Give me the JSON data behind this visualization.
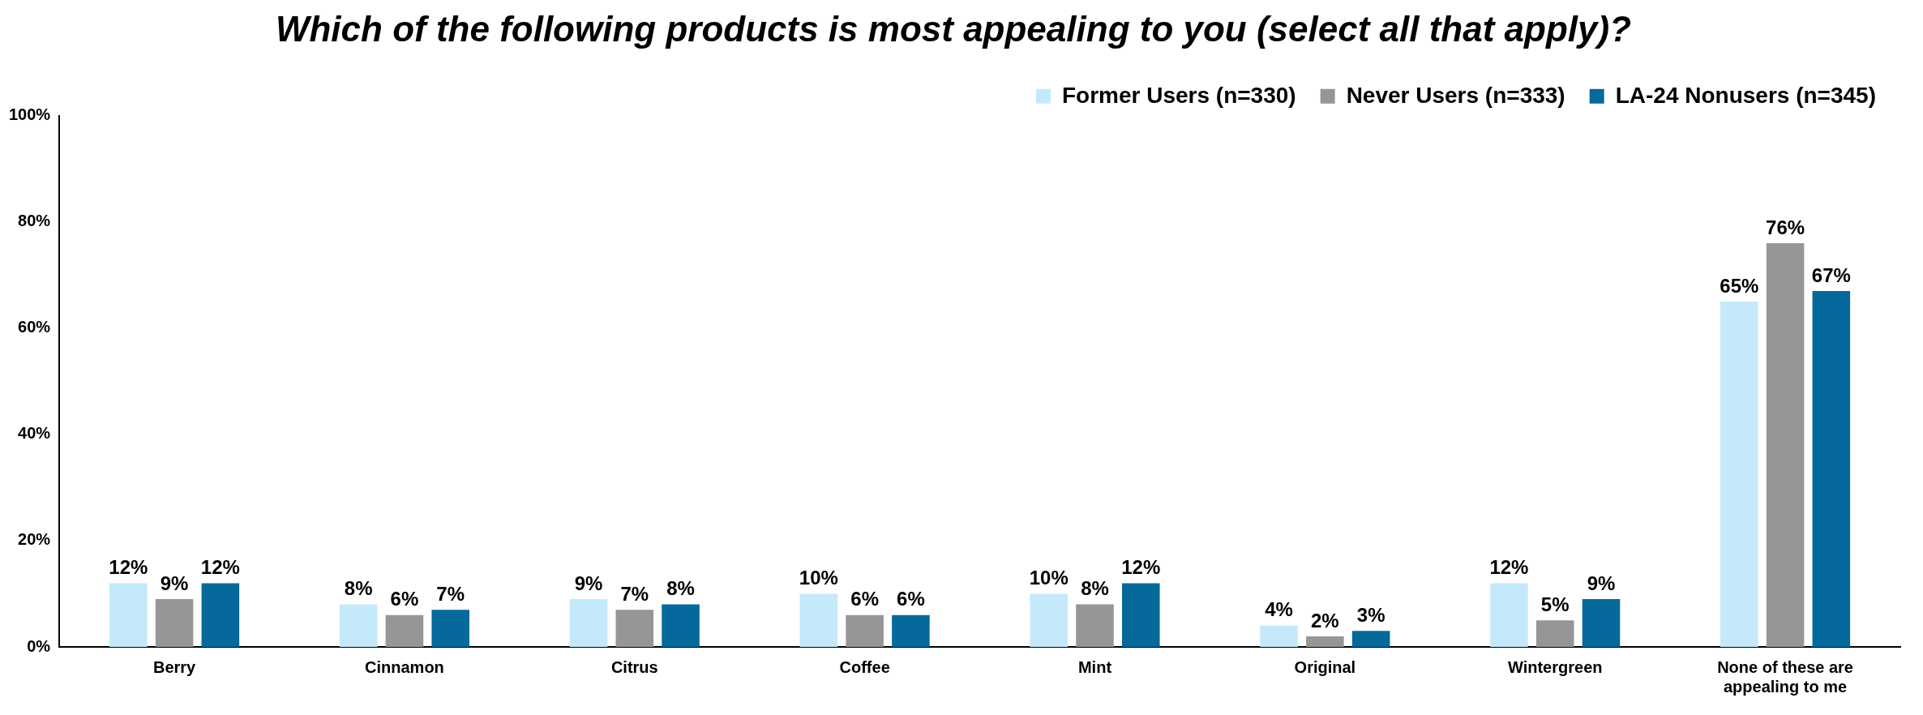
{
  "chart_data": {
    "type": "bar",
    "title": "Which of the following products is most appealing to you (select all that apply)?",
    "categories": [
      "Berry",
      "Cinnamon",
      "Citrus",
      "Coffee",
      "Mint",
      "Original",
      "Wintergreen",
      "None of these are appealing to me"
    ],
    "series": [
      {
        "name": "Former Users (n=330)",
        "color": "#c5e9fb",
        "values": [
          12,
          8,
          9,
          10,
          10,
          4,
          12,
          65
        ],
        "value_labels": [
          "12%",
          "8%",
          "9%",
          "10%",
          "10%",
          "4%",
          "12%",
          "65%"
        ]
      },
      {
        "name": "Never Users (n=333)",
        "color": "#969696",
        "values": [
          9,
          6,
          7,
          6,
          8,
          2,
          5,
          76
        ],
        "value_labels": [
          "9%",
          "6%",
          "7%",
          "6%",
          "8%",
          "2%",
          "5%",
          "76%"
        ]
      },
      {
        "name": "LA-24 Nonusers (n=345)",
        "color": "#05699c",
        "values": [
          12,
          7,
          8,
          6,
          12,
          3,
          9,
          67
        ],
        "value_labels": [
          "12%",
          "7%",
          "8%",
          "6%",
          "12%",
          "3%",
          "9%",
          "67%"
        ]
      }
    ],
    "ylim": [
      0,
      100
    ],
    "yticks": [
      {
        "value": 0,
        "label": "0%"
      },
      {
        "value": 20,
        "label": "20%"
      },
      {
        "value": 40,
        "label": "40%"
      },
      {
        "value": 60,
        "label": "60%"
      },
      {
        "value": 80,
        "label": "80%"
      },
      {
        "value": 100,
        "label": "100%"
      }
    ],
    "grid": false,
    "legend": "top right"
  }
}
